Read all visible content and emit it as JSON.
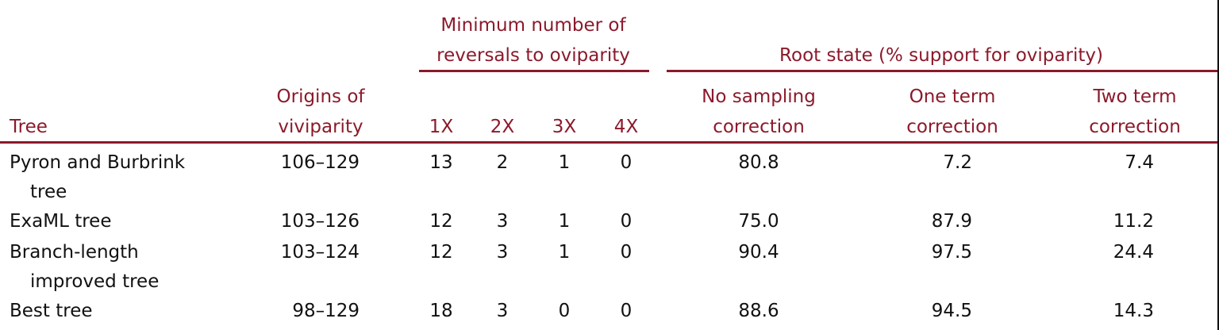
{
  "header": {
    "tree": "Tree",
    "origins_line1": "Origins of",
    "origins_line2": "viviparity",
    "reversals_group_line1": "Minimum number of",
    "reversals_group_line2": "reversals to oviparity",
    "rev_1x": "1X",
    "rev_2x": "2X",
    "rev_3x": "3X",
    "rev_4x": "4X",
    "root_group": "Root state (% support for oviparity)",
    "nosamp_line1": "No sampling",
    "nosamp_line2": "correction",
    "oneterm_line1": "One term",
    "oneterm_line2": "correction",
    "twoterm_line1": "Two term",
    "twoterm_line2": "correction"
  },
  "rows": [
    {
      "tree_line1": "Pyron and Burbrink",
      "tree_line2": "tree",
      "origins": "106–129",
      "r1": "13",
      "r2": "2",
      "r3": "1",
      "r4": "0",
      "nosamp": "80.8",
      "oneterm": "7.2",
      "twoterm": "7.4"
    },
    {
      "tree_line1": "ExaML tree",
      "tree_line2": "",
      "origins": "103–126",
      "r1": "12",
      "r2": "3",
      "r3": "1",
      "r4": "0",
      "nosamp": "75.0",
      "oneterm": "87.9",
      "twoterm": "11.2"
    },
    {
      "tree_line1": "Branch-length",
      "tree_line2": "improved tree",
      "origins": "103–124",
      "r1": "12",
      "r2": "3",
      "r3": "1",
      "r4": "0",
      "nosamp": "90.4",
      "oneterm": "97.5",
      "twoterm": "24.4"
    },
    {
      "tree_line1": "Best tree",
      "tree_line2": "",
      "origins": "98–129",
      "r1": "18",
      "r2": "3",
      "r3": "0",
      "r4": "0",
      "nosamp": "88.6",
      "oneterm": "94.5",
      "twoterm": "14.3"
    }
  ],
  "colors": {
    "header_text": "#8b1a2b",
    "rule": "#8b1a2b",
    "body_text": "#111111"
  }
}
